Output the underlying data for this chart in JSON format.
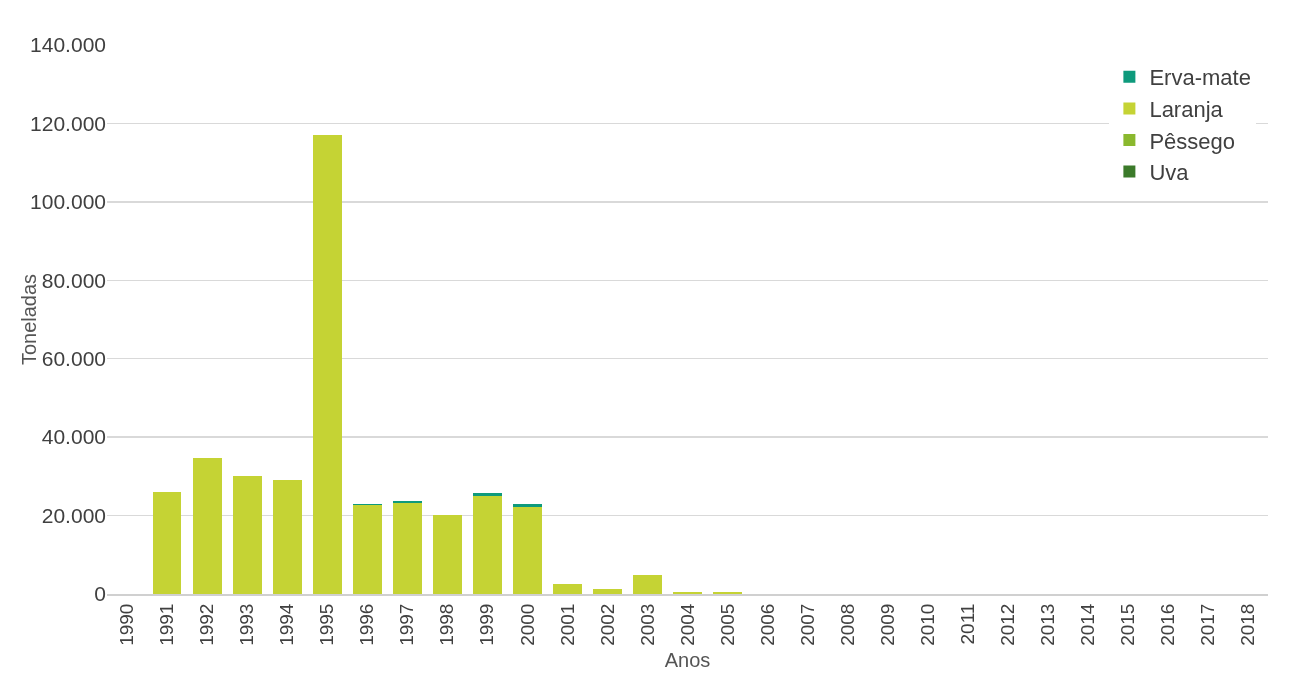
{
  "chart_data": {
    "type": "bar",
    "stacked": true,
    "xlabel": "Anos",
    "ylabel": "Toneladas",
    "categories": [
      "1990",
      "1991",
      "1992",
      "1993",
      "1994",
      "1995",
      "1996",
      "1997",
      "1998",
      "1999",
      "2000",
      "2001",
      "2002",
      "2003",
      "2004",
      "2005",
      "2006",
      "2007",
      "2008",
      "2009",
      "2010",
      "2011",
      "2012",
      "2013",
      "2014",
      "2015",
      "2016",
      "2017",
      "2018"
    ],
    "series": [
      {
        "name": "Uva",
        "color": "#3b7a2a",
        "values": [
          0,
          0,
          0,
          0,
          0,
          0,
          0,
          0,
          0,
          0,
          0,
          0,
          0,
          0,
          0,
          0,
          0,
          0,
          0,
          0,
          0,
          0,
          0,
          0,
          0,
          0,
          0,
          0,
          0
        ]
      },
      {
        "name": "Pêssego",
        "color": "#8ab82e",
        "values": [
          0,
          0,
          0,
          0,
          0,
          0,
          0,
          0,
          0,
          0,
          0,
          0,
          0,
          0,
          0,
          0,
          0,
          0,
          0,
          0,
          0,
          0,
          0,
          0,
          0,
          0,
          0,
          0,
          0
        ]
      },
      {
        "name": "Laranja",
        "color": "#c5d334",
        "values": [
          0,
          26100,
          34600,
          30100,
          29000,
          117000,
          22700,
          23200,
          20200,
          25100,
          22300,
          2600,
          1400,
          4800,
          500,
          500,
          0,
          0,
          0,
          0,
          0,
          0,
          0,
          0,
          0,
          0,
          0,
          0,
          0
        ]
      },
      {
        "name": "Erva-mate",
        "color": "#0e9a7c",
        "values": [
          0,
          0,
          0,
          0,
          0,
          0,
          300,
          400,
          0,
          700,
          700,
          0,
          0,
          0,
          0,
          0,
          0,
          0,
          0,
          0,
          0,
          0,
          0,
          0,
          0,
          0,
          0,
          0,
          0
        ]
      }
    ],
    "ylim": [
      0,
      140000
    ],
    "yticks": [
      {
        "value": 0,
        "label": "0"
      },
      {
        "value": 20000,
        "label": "20.000"
      },
      {
        "value": 40000,
        "label": "40.000"
      },
      {
        "value": 60000,
        "label": "60.000"
      },
      {
        "value": 80000,
        "label": "80.000"
      },
      {
        "value": 100000,
        "label": "100.000"
      },
      {
        "value": 120000,
        "label": "120.000"
      },
      {
        "value": 140000,
        "label": "140.000"
      }
    ],
    "grid": "y",
    "legend": "top right"
  }
}
